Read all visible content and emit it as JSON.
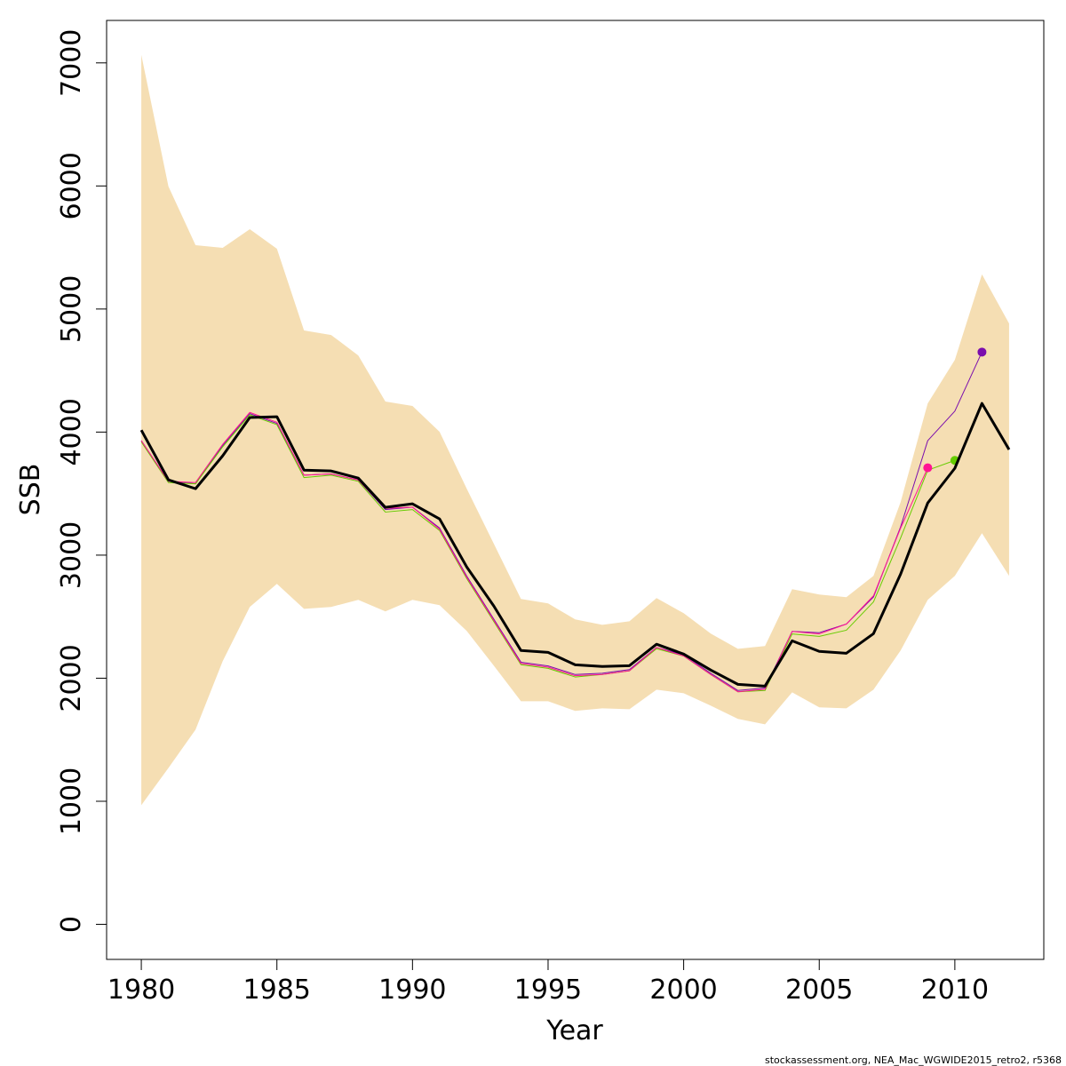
{
  "chart_data": {
    "type": "line",
    "xlabel": "Year",
    "ylabel": "SSB",
    "footnote": "stockassessment.org, NEA_Mac_WGWIDE2015_retro2, r5368",
    "x": [
      1980,
      1981,
      1982,
      1983,
      1984,
      1985,
      1986,
      1987,
      1988,
      1989,
      1990,
      1991,
      1992,
      1993,
      1994,
      1995,
      1996,
      1997,
      1998,
      1999,
      2000,
      2001,
      2002,
      2003,
      2004,
      2005,
      2006,
      2007,
      2008,
      2009,
      2010,
      2011,
      2012
    ],
    "xlim": [
      1978.72,
      2013.28
    ],
    "xticks": [
      1980,
      1985,
      1990,
      1995,
      2000,
      2005,
      2010
    ],
    "ylim": [
      -285,
      7345
    ],
    "yticks": [
      0,
      1000,
      2000,
      3000,
      4000,
      5000,
      6000,
      7000
    ],
    "band": {
      "color": "#f5deb3",
      "upper": [
        7065,
        5996,
        5519,
        5497,
        5649,
        5490,
        4826,
        4789,
        4623,
        4248,
        4212,
        4002,
        3540,
        3092,
        2644,
        2608,
        2478,
        2434,
        2463,
        2651,
        2528,
        2362,
        2239,
        2261,
        2723,
        2680,
        2658,
        2832,
        3431,
        4233,
        4587,
        5281,
        4883
      ],
      "lower": [
        968,
        1271,
        1582,
        2138,
        2579,
        2767,
        2564,
        2579,
        2637,
        2543,
        2637,
        2593,
        2384,
        2102,
        1813,
        1813,
        1734,
        1755,
        1748,
        1907,
        1878,
        1777,
        1669,
        1625,
        1885,
        1763,
        1755,
        1907,
        2225,
        2637,
        2832,
        3178,
        2832
      ]
    },
    "series": [
      {
        "color": "#7a0dad",
        "width": 1,
        "end_marker": true,
        "values": [
          3930,
          3600,
          3580,
          3890,
          4150,
          4070,
          3650,
          3660,
          3610,
          3370,
          3390,
          3220,
          2830,
          2480,
          2130,
          2100,
          2030,
          2040,
          2070,
          2250,
          2190,
          2040,
          1900,
          1920,
          2380,
          2370,
          2440,
          2660,
          3230,
          3930,
          4170,
          4650,
          null
        ]
      },
      {
        "color": "#66cc00",
        "width": 1,
        "end_marker": true,
        "values": [
          3920,
          3590,
          3580,
          3880,
          4140,
          4060,
          3630,
          3650,
          3600,
          3350,
          3370,
          3200,
          2810,
          2460,
          2110,
          2080,
          2010,
          2030,
          2060,
          2240,
          2180,
          2030,
          1890,
          1900,
          2360,
          2340,
          2390,
          2620,
          3140,
          3690,
          3770,
          null,
          null
        ]
      },
      {
        "color": "#ff1493",
        "width": 1,
        "end_marker": true,
        "values": [
          3930,
          3600,
          3590,
          3900,
          4160,
          4080,
          3650,
          3660,
          3610,
          3380,
          3390,
          3210,
          2820,
          2470,
          2120,
          2090,
          2020,
          2030,
          2060,
          2250,
          2180,
          2030,
          1890,
          1910,
          2380,
          2360,
          2440,
          2670,
          3220,
          3710,
          null,
          null,
          null
        ]
      },
      {
        "color": "#000000",
        "width": 3,
        "end_marker": false,
        "values": [
          4016,
          3612,
          3540,
          3807,
          4118,
          4125,
          3691,
          3684,
          3626,
          3388,
          3417,
          3294,
          2904,
          2586,
          2225,
          2210,
          2109,
          2095,
          2102,
          2276,
          2196,
          2066,
          1950,
          1936,
          2304,
          2218,
          2203,
          2362,
          2846,
          3424,
          3706,
          4233,
          3858
        ]
      }
    ]
  }
}
